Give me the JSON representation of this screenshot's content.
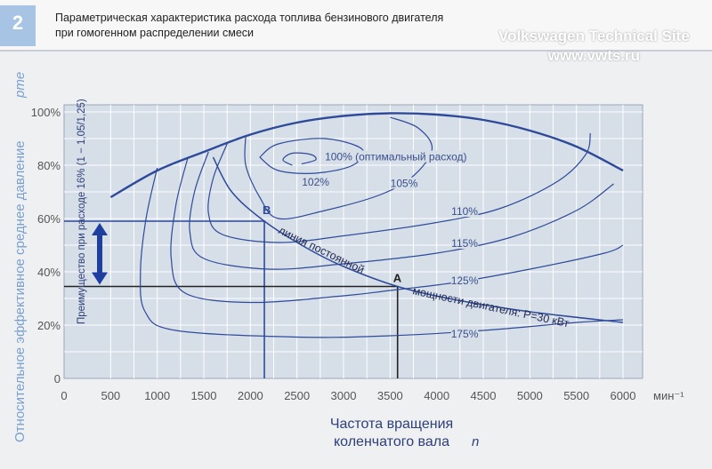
{
  "figure_number": "2",
  "title_line1": "Параметрическая характеристика расхода топлива бензинового двигателя",
  "title_line2": "при гомогенном распределении смеси",
  "watermark_line1": "Volkswagen Technical Site",
  "watermark_line2": "www.vwts.ru",
  "colors": {
    "curve": "#2e4a9a",
    "plot_bg": "#d6dee8",
    "grid": "#ffffff",
    "arrow": "#1f3fa0",
    "black": "#222222"
  },
  "chart_data": {
    "type": "line",
    "title": "Параметрическая характеристика расхода топлива бензинового двигателя при гомогенном распределении смеси",
    "xlabel_line1": "Частота вращения",
    "xlabel_line2": "коленчатого вала",
    "xlabel_symbol": "n",
    "x_unit": "мин⁻¹",
    "ylabel": "Относительное эффективное среднее давление",
    "ylabel_symbol": "pme",
    "xlim": [
      0,
      6000
    ],
    "ylim": [
      0,
      100
    ],
    "grid": true,
    "x_ticks": [
      "0",
      "500",
      "1000",
      "1500",
      "2000",
      "2500",
      "3000",
      "3500",
      "4000",
      "4500",
      "5000",
      "5500",
      "6000"
    ],
    "y_ticks": [
      "0",
      "20%",
      "40%",
      "60%",
      "80%",
      "100%"
    ],
    "full_load": [
      [
        500,
        68
      ],
      [
        1000,
        78
      ],
      [
        1500,
        85
      ],
      [
        2000,
        91.5
      ],
      [
        2500,
        96
      ],
      [
        3000,
        98.5
      ],
      [
        3500,
        99.5
      ],
      [
        4000,
        99
      ],
      [
        4500,
        97
      ],
      [
        5000,
        93
      ],
      [
        5500,
        87
      ],
      [
        6000,
        78
      ]
    ],
    "contours": [
      {
        "label": "100% (оптимальный расход)",
        "points": [
          [
            2450,
            80
          ],
          [
            2350,
            82
          ],
          [
            2450,
            84.5
          ],
          [
            2650,
            84
          ],
          [
            2700,
            82
          ],
          [
            2550,
            80.5
          ]
        ],
        "label_at": [
          2800,
          82.5
        ]
      },
      {
        "label": "102%",
        "points": [
          [
            2100,
            83
          ],
          [
            2300,
            88
          ],
          [
            2800,
            90
          ],
          [
            3200,
            86
          ],
          [
            3100,
            80
          ],
          [
            2700,
            77
          ],
          [
            2300,
            78
          ],
          [
            2100,
            83
          ]
        ],
        "label_at": [
          2700,
          73
        ]
      },
      {
        "label": "105%",
        "points": [
          [
            1950,
            91
          ],
          [
            1950,
            80
          ],
          [
            2100,
            68
          ],
          [
            2300,
            60
          ],
          [
            2800,
            63
          ],
          [
            3400,
            69
          ],
          [
            3750,
            76
          ],
          [
            3950,
            86
          ],
          [
            3800,
            94
          ],
          [
            3500,
            98
          ]
        ],
        "label_at": [
          3650,
          72.5
        ]
      },
      {
        "label": "110%",
        "points": [
          [
            1750,
            88
          ],
          [
            1600,
            75
          ],
          [
            1550,
            62
          ],
          [
            1700,
            54
          ],
          [
            2300,
            51
          ],
          [
            3000,
            53.5
          ],
          [
            4000,
            58.5
          ],
          [
            4700,
            64
          ],
          [
            5300,
            74
          ],
          [
            5600,
            84
          ],
          [
            5650,
            92
          ]
        ],
        "label_at": [
          4300,
          62
        ]
      },
      {
        "label": "115%",
        "points": [
          [
            1550,
            85
          ],
          [
            1400,
            70
          ],
          [
            1350,
            55
          ],
          [
            1500,
            45
          ],
          [
            2200,
            41
          ],
          [
            3000,
            43
          ],
          [
            4000,
            47
          ],
          [
            4800,
            53
          ],
          [
            5500,
            63
          ],
          [
            5900,
            73
          ]
        ],
        "label_at": [
          4300,
          50
        ]
      },
      {
        "label": "125%",
        "points": [
          [
            1330,
            83
          ],
          [
            1200,
            65
          ],
          [
            1150,
            45
          ],
          [
            1300,
            32
          ],
          [
            2000,
            28.5
          ],
          [
            3000,
            31
          ],
          [
            3500,
            33
          ],
          [
            4200,
            36
          ],
          [
            5000,
            41
          ],
          [
            5800,
            47
          ],
          [
            6000,
            50
          ]
        ],
        "label_at": [
          4300,
          36
        ]
      },
      {
        "label": "175%",
        "points": [
          [
            1000,
            79
          ],
          [
            880,
            60
          ],
          [
            820,
            40
          ],
          [
            870,
            25
          ],
          [
            1200,
            18
          ],
          [
            2500,
            15.5
          ],
          [
            3500,
            16
          ],
          [
            4500,
            18
          ],
          [
            5500,
            21
          ],
          [
            6000,
            22
          ]
        ],
        "label_at": [
          4300,
          16
        ]
      }
    ],
    "constant_power": {
      "label": "линия постоянной мощности двигателя: P=30 кВт",
      "points": [
        [
          1600,
          83
        ],
        [
          1800,
          70
        ],
        [
          2150,
          59
        ],
        [
          2600,
          49
        ],
        [
          3000,
          42
        ],
        [
          3580,
          34.5
        ],
        [
          4200,
          29.5
        ],
        [
          5000,
          25
        ],
        [
          6000,
          21
        ]
      ]
    },
    "point_A": {
      "label": "A",
      "n": 3580,
      "p": 34.5
    },
    "point_B": {
      "label": "B",
      "n": 2150,
      "p": 59
    },
    "advantage": {
      "label": "Преимущество при расходе 16% (1 − 1,05/1,25)",
      "from": 34.5,
      "to": 59
    }
  }
}
